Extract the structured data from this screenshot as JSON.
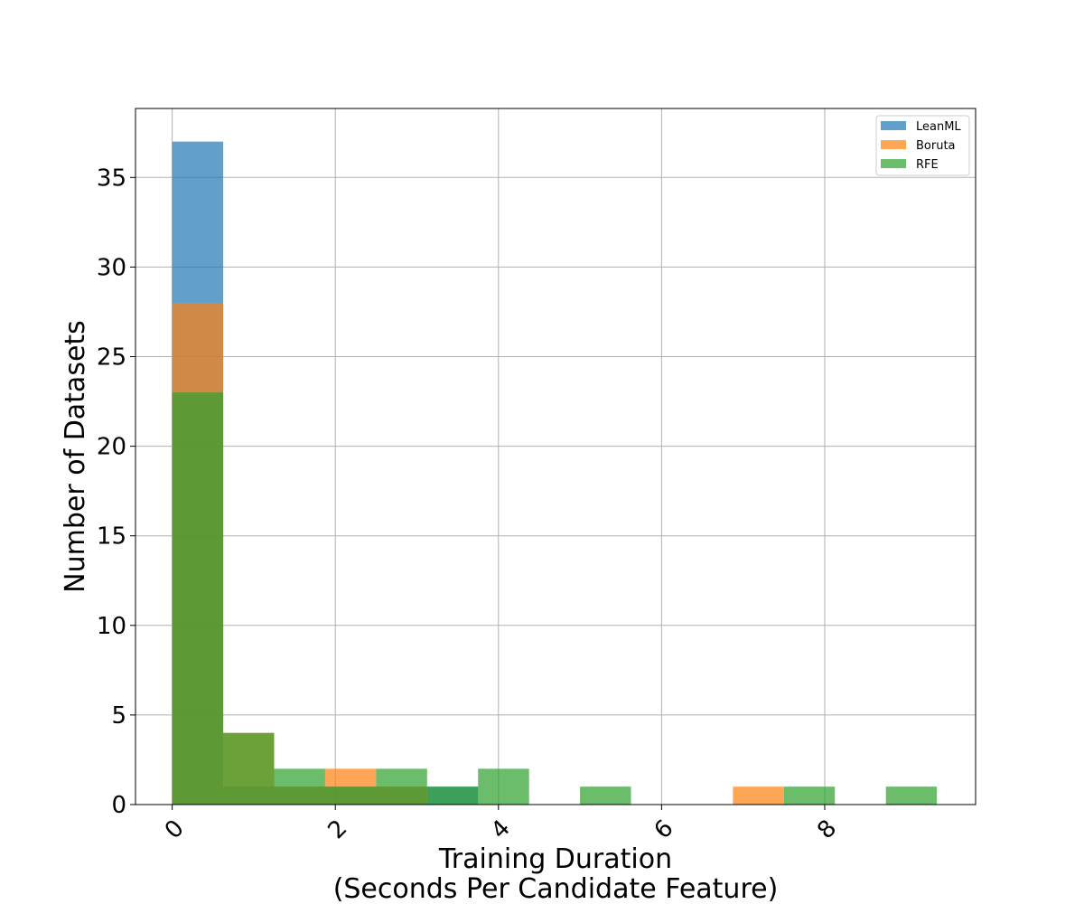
{
  "chart_data": {
    "type": "bar",
    "subtype": "overlapping-histogram",
    "title": "",
    "xlabel": "Training Duration",
    "xlabel_line2": "(Seconds Per Candidate Feature)",
    "ylabel": "Number of Datasets",
    "xlim": [
      -0.45,
      9.85
    ],
    "ylim": [
      0,
      38.85
    ],
    "x_ticks": [
      0,
      2,
      4,
      6,
      8
    ],
    "x_tick_labels": [
      "0",
      "2",
      "4",
      "6",
      "8"
    ],
    "y_ticks": [
      0,
      5,
      10,
      15,
      20,
      25,
      30,
      35
    ],
    "y_tick_labels": [
      "0",
      "5",
      "10",
      "15",
      "20",
      "25",
      "30",
      "35"
    ],
    "bin_edges": [
      0,
      0.625,
      1.25,
      1.875,
      2.5,
      3.125,
      3.75,
      4.375,
      5.0,
      5.625,
      6.25,
      6.875,
      7.5,
      8.125,
      8.75,
      9.375
    ],
    "grid": true,
    "legend_position": "top-right",
    "series": [
      {
        "name": "LeanML",
        "color": "#1f77b4",
        "values": [
          37,
          1,
          1,
          1,
          1,
          1,
          0,
          0,
          0,
          0,
          0,
          0,
          0,
          0,
          0
        ]
      },
      {
        "name": "Boruta",
        "color": "#ff7f0e",
        "values": [
          28,
          4,
          1,
          2,
          1,
          0,
          0,
          0,
          0,
          0,
          0,
          1,
          0,
          0,
          0
        ]
      },
      {
        "name": "RFE",
        "color": "#2ca02c",
        "values": [
          23,
          4,
          2,
          1,
          2,
          1,
          2,
          0,
          1,
          0,
          0,
          0,
          1,
          0,
          1
        ]
      }
    ]
  }
}
